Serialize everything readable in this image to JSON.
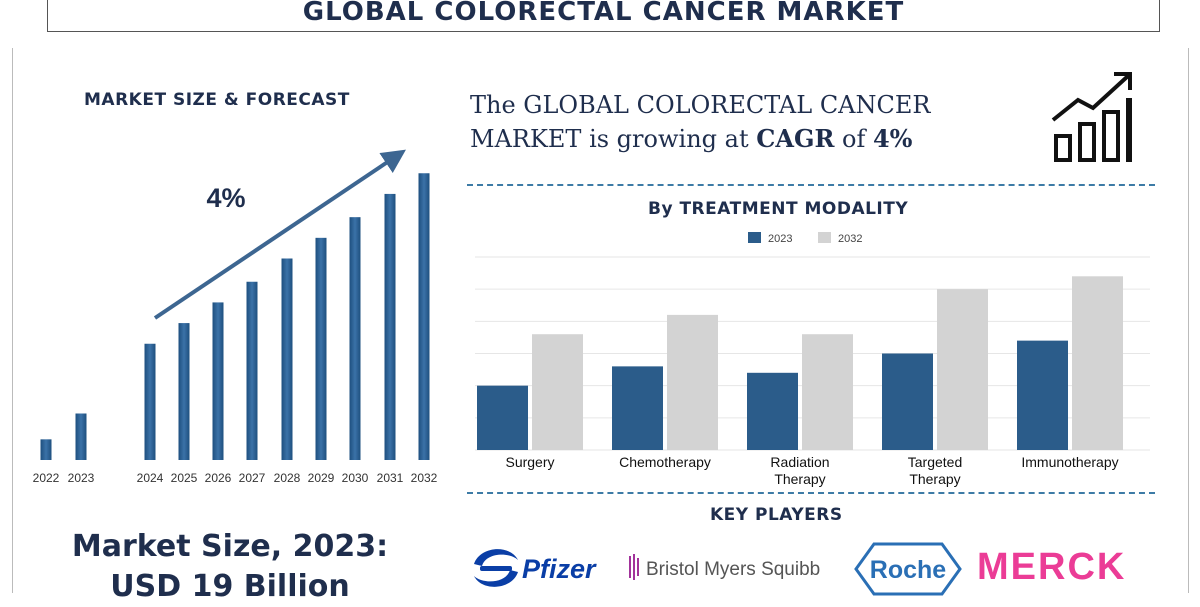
{
  "title": "GLOBAL COLORECTAL CANCER MARKET",
  "left_section": {
    "heading": "MARKET SIZE & FORECAST",
    "cagr_label": "4%",
    "market_size_line1": "Market Size, 2023:",
    "market_size_line2": "USD 19 Billion"
  },
  "statement": {
    "part1": "The GLOBAL COLORECTAL CANCER MARKET is growing at ",
    "cagr_word": "CAGR",
    "part2": " of ",
    "cagr_value": "4%"
  },
  "right_section": {
    "heading": "By TREATMENT MODALITY",
    "key_players_heading": "KEY PLAYERS"
  },
  "key_players": [
    "Pfizer",
    "Bristol Myers Squibb",
    "Roche",
    "MERCK"
  ],
  "colors": {
    "navy": "#1f2e4d",
    "bar_blue": "#2b5c8a",
    "bar_grey": "#d3d3d3",
    "dash_blue": "#3d7ba6",
    "pfizer_blue": "#0a3ea6",
    "bms_purple": "#a2339b",
    "roche_blue": "#2a6fb5",
    "merck_pink": "#eb3c96"
  },
  "icons": [
    "growth-chart-icon",
    "trend-arrow-icon"
  ],
  "chart_data": [
    {
      "type": "bar",
      "categories": [
        "2022",
        "2023",
        "2024",
        "2025",
        "2026",
        "2027",
        "2028",
        "2029",
        "2030",
        "2031",
        "2032"
      ],
      "values": [
        4,
        9,
        22.5,
        26.5,
        30.5,
        34.5,
        39,
        43,
        47,
        51.5,
        55.5
      ],
      "title": "MARKET SIZE & FORECAST",
      "annotation": "4%",
      "ylim": [
        0,
        60
      ],
      "grid": false
    },
    {
      "type": "bar",
      "title": "By TREATMENT MODALITY",
      "categories": [
        "Surgery",
        "Chemotherapy",
        "Radiation Therapy",
        "Targeted Therapy",
        "Immunotherapy"
      ],
      "series": [
        {
          "name": "2023",
          "values": [
            2.0,
            2.6,
            2.4,
            3.0,
            3.4
          ]
        },
        {
          "name": "2032",
          "values": [
            3.6,
            4.2,
            3.6,
            5.0,
            5.4
          ]
        }
      ],
      "ylim": [
        0,
        6
      ],
      "grid": true,
      "legend": "top-center"
    }
  ]
}
